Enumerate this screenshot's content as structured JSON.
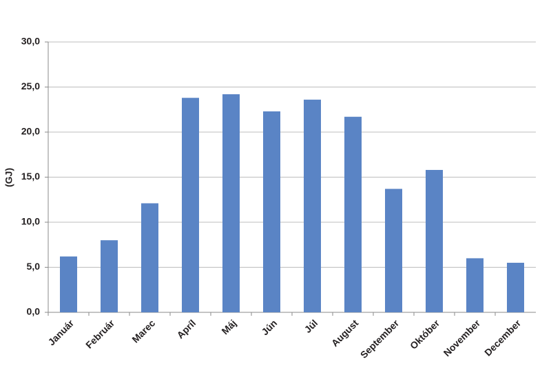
{
  "chart_data": {
    "type": "bar",
    "y_label": "(GJ)",
    "categories": [
      "Január",
      "Február",
      "Marec",
      "Apríl",
      "Máj",
      "Jún",
      "Júl",
      "August",
      "September",
      "Október",
      "November",
      "December"
    ],
    "values": [
      6.2,
      8.0,
      12.1,
      23.8,
      24.2,
      22.3,
      23.6,
      21.7,
      13.7,
      15.8,
      6.0,
      5.5
    ],
    "color": "#5a84c5",
    "ylim": [
      0,
      30
    ],
    "yticks": [
      {
        "value": 0,
        "label": "0,0"
      },
      {
        "value": 5,
        "label": "5,0"
      },
      {
        "value": 10,
        "label": "10,0"
      },
      {
        "value": 15,
        "label": "15,0"
      },
      {
        "value": 20,
        "label": "20,0"
      },
      {
        "value": 25,
        "label": "25,0"
      },
      {
        "value": 30,
        "label": "30,0"
      }
    ],
    "grid": true
  }
}
